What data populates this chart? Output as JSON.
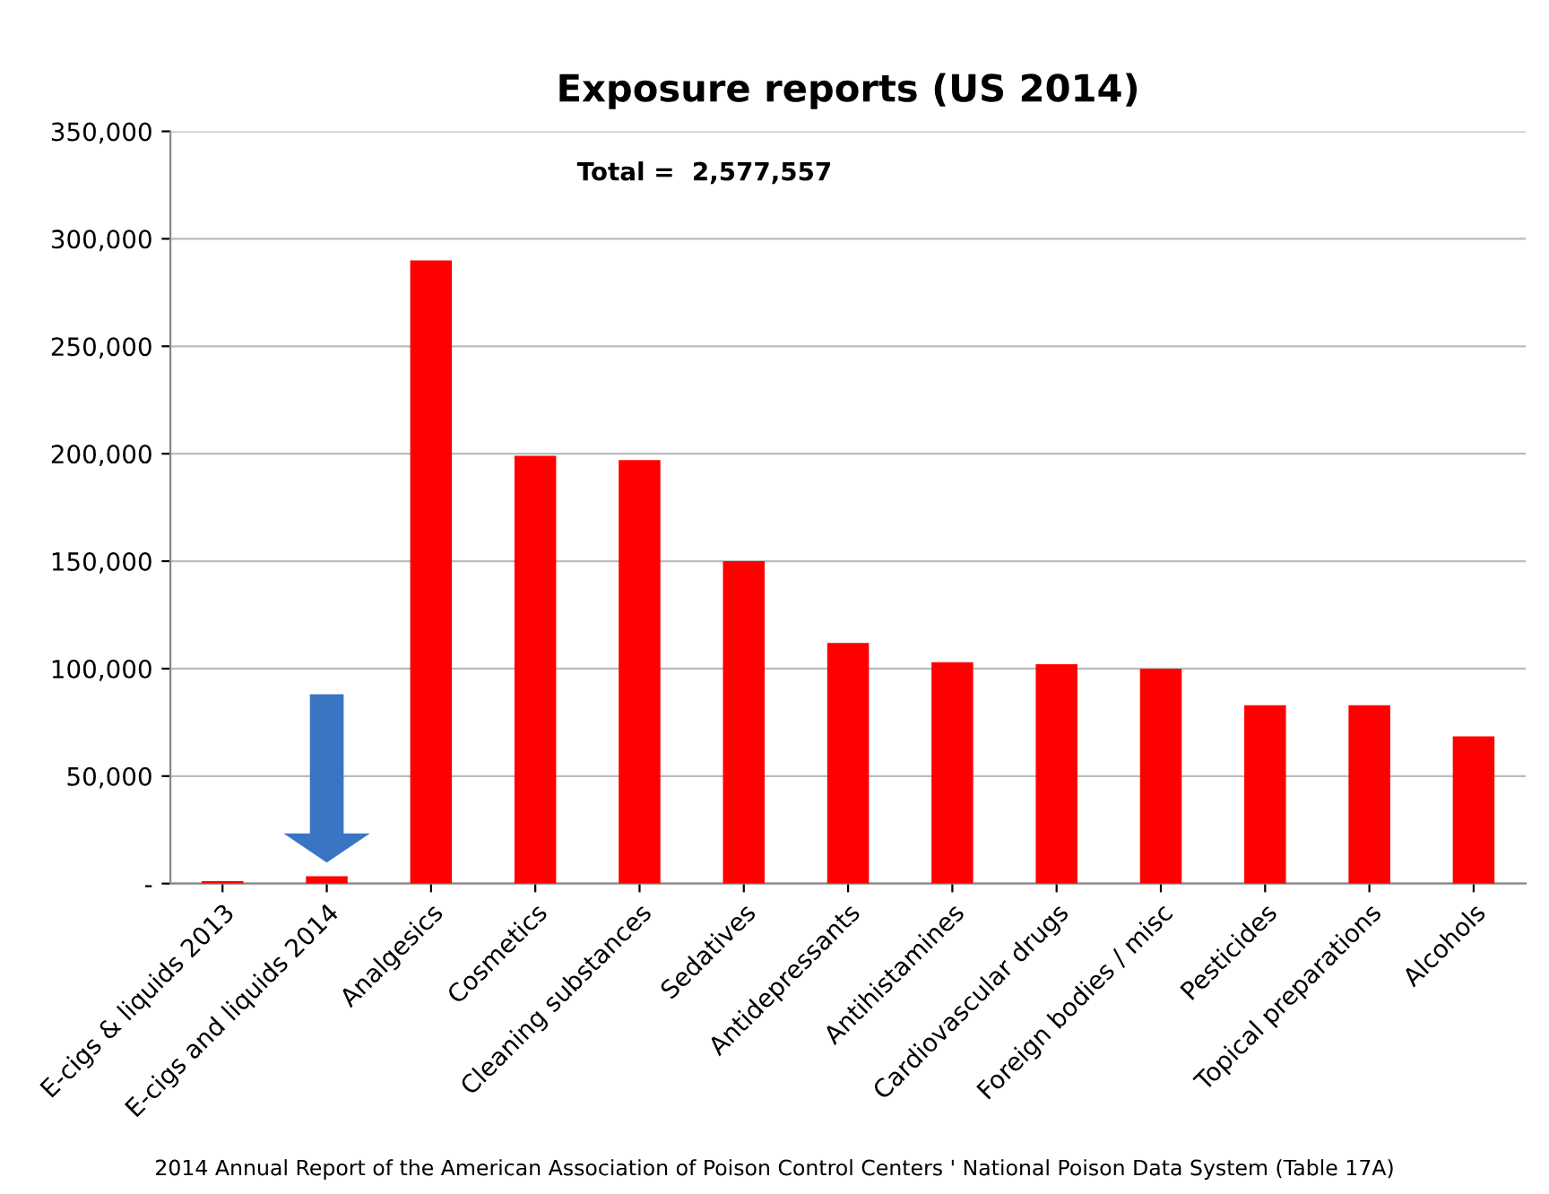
{
  "chart_data": {
    "type": "bar",
    "title": "Exposure reports (US 2014)",
    "categories": [
      "E-cigs & liquids 2013",
      "E-cigs and liquids 2014",
      "Analgesics",
      "Cosmetics",
      "Cleaning substances",
      "Sedatives",
      "Antidepressants",
      "Antihistamines",
      "Cardiovascular drugs",
      "Foreign bodies / misc",
      "Pesticides",
      "Topical preparations",
      "Alcohols"
    ],
    "values": [
      1100,
      3400,
      290000,
      199000,
      197000,
      150000,
      112000,
      103000,
      102000,
      100000,
      83000,
      83000,
      68500
    ],
    "color": "#ff0000",
    "ylim": [
      0,
      350000
    ],
    "yticks": [
      {
        "value": 0,
        "label": "-"
      },
      {
        "value": 50000,
        "label": "50,000"
      },
      {
        "value": 100000,
        "label": "100,000"
      },
      {
        "value": 150000,
        "label": "150,000"
      },
      {
        "value": 200000,
        "label": "200,000"
      },
      {
        "value": 250000,
        "label": "250,000"
      },
      {
        "value": 300000,
        "label": "300,000"
      },
      {
        "value": 350000,
        "label": "350,000"
      }
    ],
    "grid": "y",
    "annotations": [
      "Total =  2,577,557",
      "2014 Annual Report of the American Association of Poison Control Centers ' National Poison Data System (Table 17A)"
    ]
  }
}
